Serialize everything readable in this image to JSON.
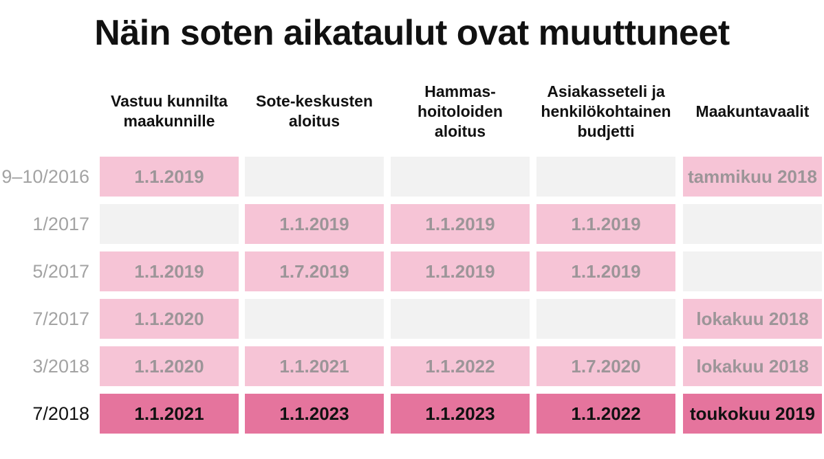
{
  "title": "Näin soten aikataulut ovat muuttuneet",
  "colors": {
    "empty": "#f2f2f2",
    "past_value": "#f6c4d6",
    "current_value": "#e5749d",
    "past_text": "#9c9598",
    "current_text": "#111111"
  },
  "chart_data": {
    "type": "table",
    "title": "Näin soten aikataulut ovat muuttuneet",
    "columns": [
      "Vastuu kunnilta\nmaakunnille",
      "Sote-keskusten\naloitus",
      "Hammas-\nhoitoloiden\naloitus",
      "Asiakasseteli ja\nhenkilökohtainen\nbudjetti",
      "Maakuntavaalit"
    ],
    "rows": [
      {
        "label": "9–10/2016",
        "cells": [
          "1.1.2019",
          "",
          "",
          "",
          "tammikuu 2018"
        ]
      },
      {
        "label": "1/2017",
        "cells": [
          "",
          "1.1.2019",
          "1.1.2019",
          "1.1.2019",
          ""
        ]
      },
      {
        "label": "5/2017",
        "cells": [
          "1.1.2019",
          "1.7.2019",
          "1.1.2019",
          "1.1.2019",
          ""
        ]
      },
      {
        "label": "7/2017",
        "cells": [
          "1.1.2020",
          "",
          "",
          "",
          "lokakuu 2018"
        ]
      },
      {
        "label": "3/2018",
        "cells": [
          "1.1.2020",
          "1.1.2021",
          "1.1.2022",
          "1.7.2020",
          "lokakuu 2018"
        ]
      },
      {
        "label": "7/2018",
        "cells": [
          "1.1.2021",
          "1.1.2023",
          "1.1.2023",
          "1.1.2022",
          "toukokuu 2019"
        ],
        "current": true
      }
    ]
  }
}
